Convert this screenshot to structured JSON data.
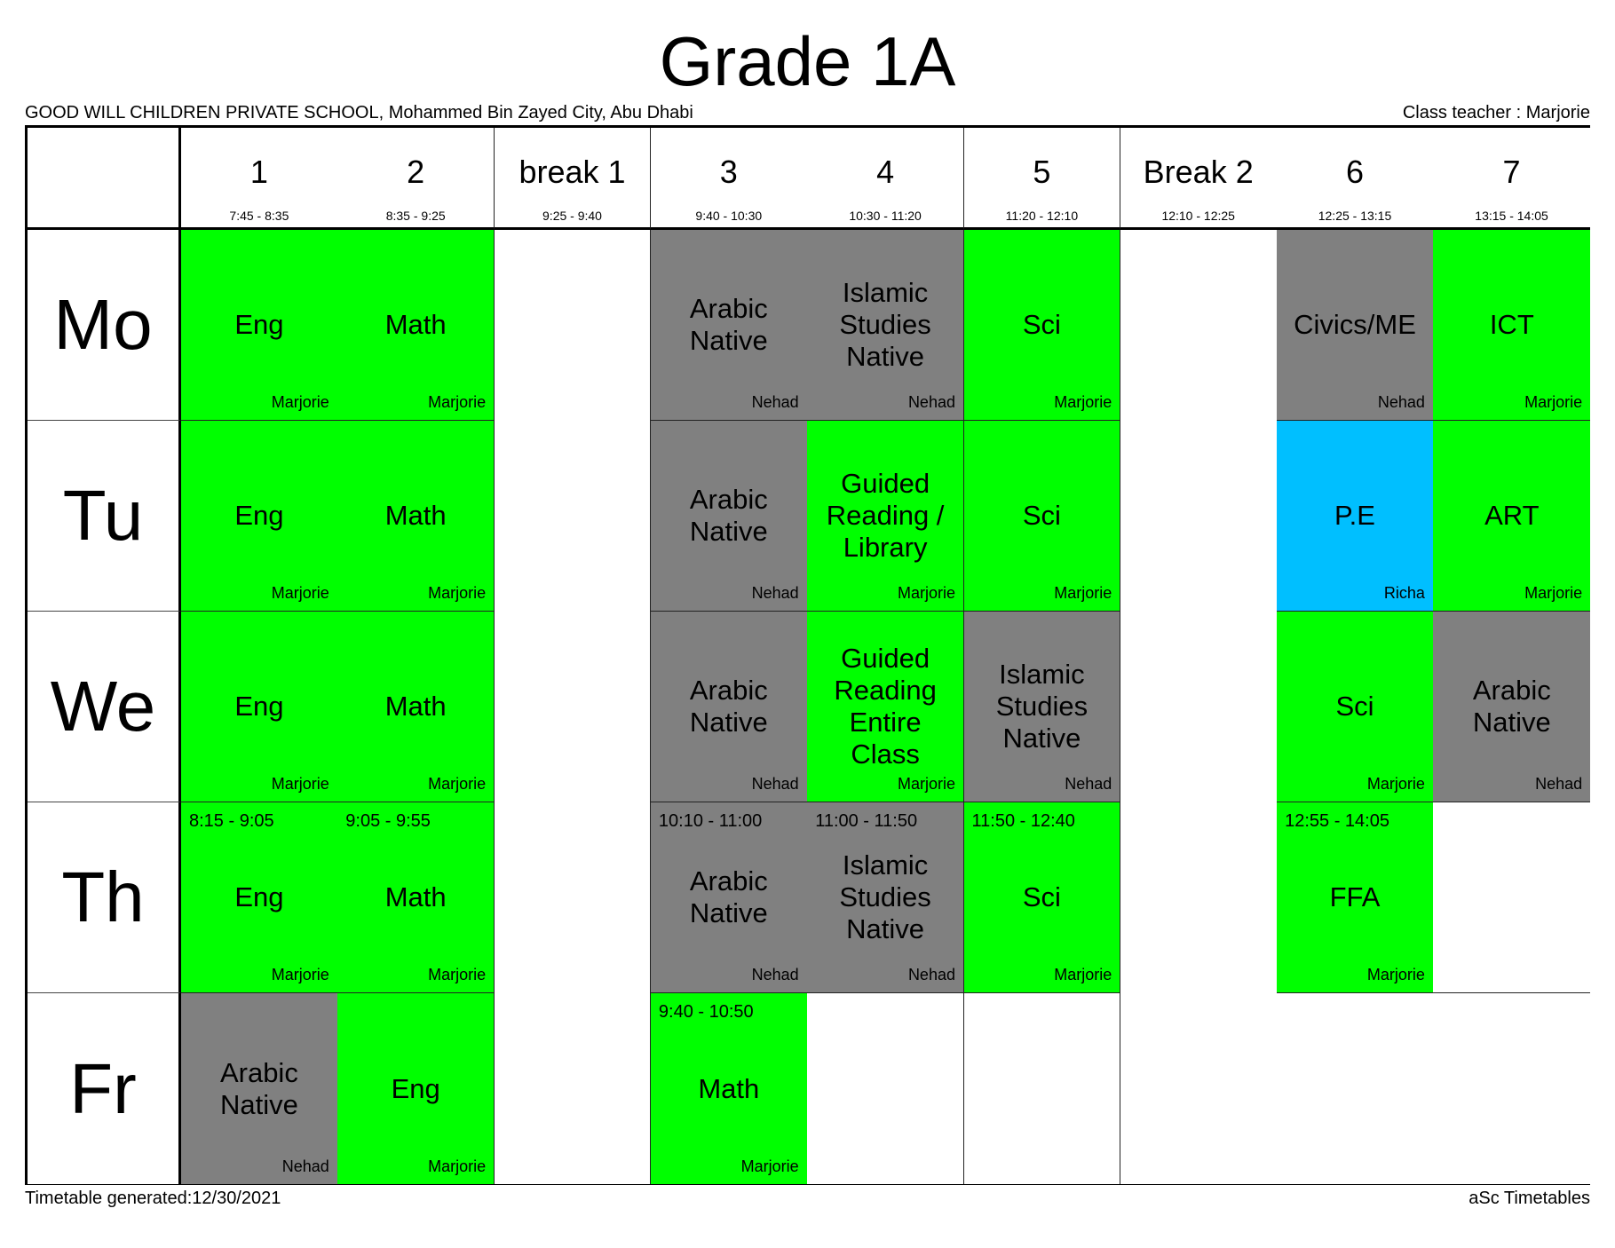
{
  "header": {
    "title": "Grade 1A",
    "school": "GOOD WILL CHILDREN PRIVATE SCHOOL, Mohammed Bin Zayed City, Abu Dhabi",
    "class_teacher": "Class teacher : Marjorie"
  },
  "footer": {
    "generated": "Timetable generated:12/30/2021",
    "brand": "aSc Timetables"
  },
  "colors": {
    "core": "#00ff00",
    "native": "#808080",
    "pe": "#00bfff",
    "empty": "#ffffff"
  },
  "periods": [
    {
      "label": "1",
      "time": "7:45 - 8:35"
    },
    {
      "label": "2",
      "time": "8:35 - 9:25"
    },
    {
      "label": "break 1",
      "time": "9:25 - 9:40"
    },
    {
      "label": "3",
      "time": "9:40 - 10:30"
    },
    {
      "label": "4",
      "time": "10:30 - 11:20"
    },
    {
      "label": "5",
      "time": "11:20 - 12:10"
    },
    {
      "label": "Break 2",
      "time": "12:10 - 12:25"
    },
    {
      "label": "6",
      "time": "12:25 - 13:15"
    },
    {
      "label": "7",
      "time": "13:15 - 14:05"
    }
  ],
  "days": [
    {
      "label": "Mo",
      "lessons": [
        {
          "subject": "Eng",
          "teacher": "Marjorie",
          "color": "#00ff00",
          "time": ""
        },
        {
          "subject": "Math",
          "teacher": "Marjorie",
          "color": "#00ff00",
          "time": ""
        },
        null,
        {
          "subject": "Arabic Native",
          "teacher": "Nehad",
          "color": "#808080",
          "time": ""
        },
        {
          "subject": "Islamic Studies Native",
          "teacher": "Nehad",
          "color": "#808080",
          "time": ""
        },
        {
          "subject": "Sci",
          "teacher": "Marjorie",
          "color": "#00ff00",
          "time": ""
        },
        null,
        {
          "subject": "Civics/ME",
          "teacher": "Nehad",
          "color": "#808080",
          "time": ""
        },
        {
          "subject": "ICT",
          "teacher": "Marjorie",
          "color": "#00ff00",
          "time": ""
        }
      ]
    },
    {
      "label": "Tu",
      "lessons": [
        {
          "subject": "Eng",
          "teacher": "Marjorie",
          "color": "#00ff00",
          "time": ""
        },
        {
          "subject": "Math",
          "teacher": "Marjorie",
          "color": "#00ff00",
          "time": ""
        },
        null,
        {
          "subject": "Arabic Native",
          "teacher": "Nehad",
          "color": "#808080",
          "time": ""
        },
        {
          "subject": "Guided Reading / Library",
          "teacher": "Marjorie",
          "color": "#00ff00",
          "time": ""
        },
        {
          "subject": "Sci",
          "teacher": "Marjorie",
          "color": "#00ff00",
          "time": ""
        },
        null,
        {
          "subject": "P.E",
          "teacher": "Richa",
          "color": "#00bfff",
          "time": ""
        },
        {
          "subject": "ART",
          "teacher": "Marjorie",
          "color": "#00ff00",
          "time": ""
        }
      ]
    },
    {
      "label": "We",
      "lessons": [
        {
          "subject": "Eng",
          "teacher": "Marjorie",
          "color": "#00ff00",
          "time": ""
        },
        {
          "subject": "Math",
          "teacher": "Marjorie",
          "color": "#00ff00",
          "time": ""
        },
        null,
        {
          "subject": "Arabic Native",
          "teacher": "Nehad",
          "color": "#808080",
          "time": ""
        },
        {
          "subject": "Guided Reading Entire Class",
          "teacher": "Marjorie",
          "color": "#00ff00",
          "time": ""
        },
        {
          "subject": "Islamic Studies Native",
          "teacher": "Nehad",
          "color": "#808080",
          "time": ""
        },
        null,
        {
          "subject": "Sci",
          "teacher": "Marjorie",
          "color": "#00ff00",
          "time": ""
        },
        {
          "subject": "Arabic Native",
          "teacher": "Nehad",
          "color": "#808080",
          "time": ""
        }
      ]
    },
    {
      "label": "Th",
      "lessons": [
        {
          "subject": "Eng",
          "teacher": "Marjorie",
          "color": "#00ff00",
          "time": "8:15 - 9:05"
        },
        {
          "subject": "Math",
          "teacher": "Marjorie",
          "color": "#00ff00",
          "time": "9:05 - 9:55"
        },
        null,
        {
          "subject": "Arabic Native",
          "teacher": "Nehad",
          "color": "#808080",
          "time": "10:10 - 11:00"
        },
        {
          "subject": "Islamic Studies Native",
          "teacher": "Nehad",
          "color": "#808080",
          "time": "11:00 - 11:50"
        },
        {
          "subject": "Sci",
          "teacher": "Marjorie",
          "color": "#00ff00",
          "time": "11:50 - 12:40"
        },
        null,
        {
          "subject": "FFA",
          "teacher": "Marjorie",
          "color": "#00ff00",
          "time": "12:55 - 14:05"
        },
        {
          "subject": "",
          "teacher": "",
          "color": "#ffffff",
          "time": ""
        }
      ]
    },
    {
      "label": "Fr",
      "lessons": [
        {
          "subject": "Arabic Native",
          "teacher": "Nehad",
          "color": "#808080",
          "time": ""
        },
        {
          "subject": "Eng",
          "teacher": "Marjorie",
          "color": "#00ff00",
          "time": ""
        },
        null,
        {
          "subject": "Math",
          "teacher": "Marjorie",
          "color": "#00ff00",
          "time": "9:40 - 10:50"
        },
        {
          "subject": "",
          "teacher": "",
          "color": "#ffffff",
          "time": ""
        },
        {
          "subject": "",
          "teacher": "",
          "color": "#ffffff",
          "time": ""
        },
        null,
        {
          "subject": "",
          "teacher": "",
          "color": "#ffffff",
          "time": ""
        },
        {
          "subject": "",
          "teacher": "",
          "color": "#ffffff",
          "time": ""
        }
      ]
    }
  ]
}
